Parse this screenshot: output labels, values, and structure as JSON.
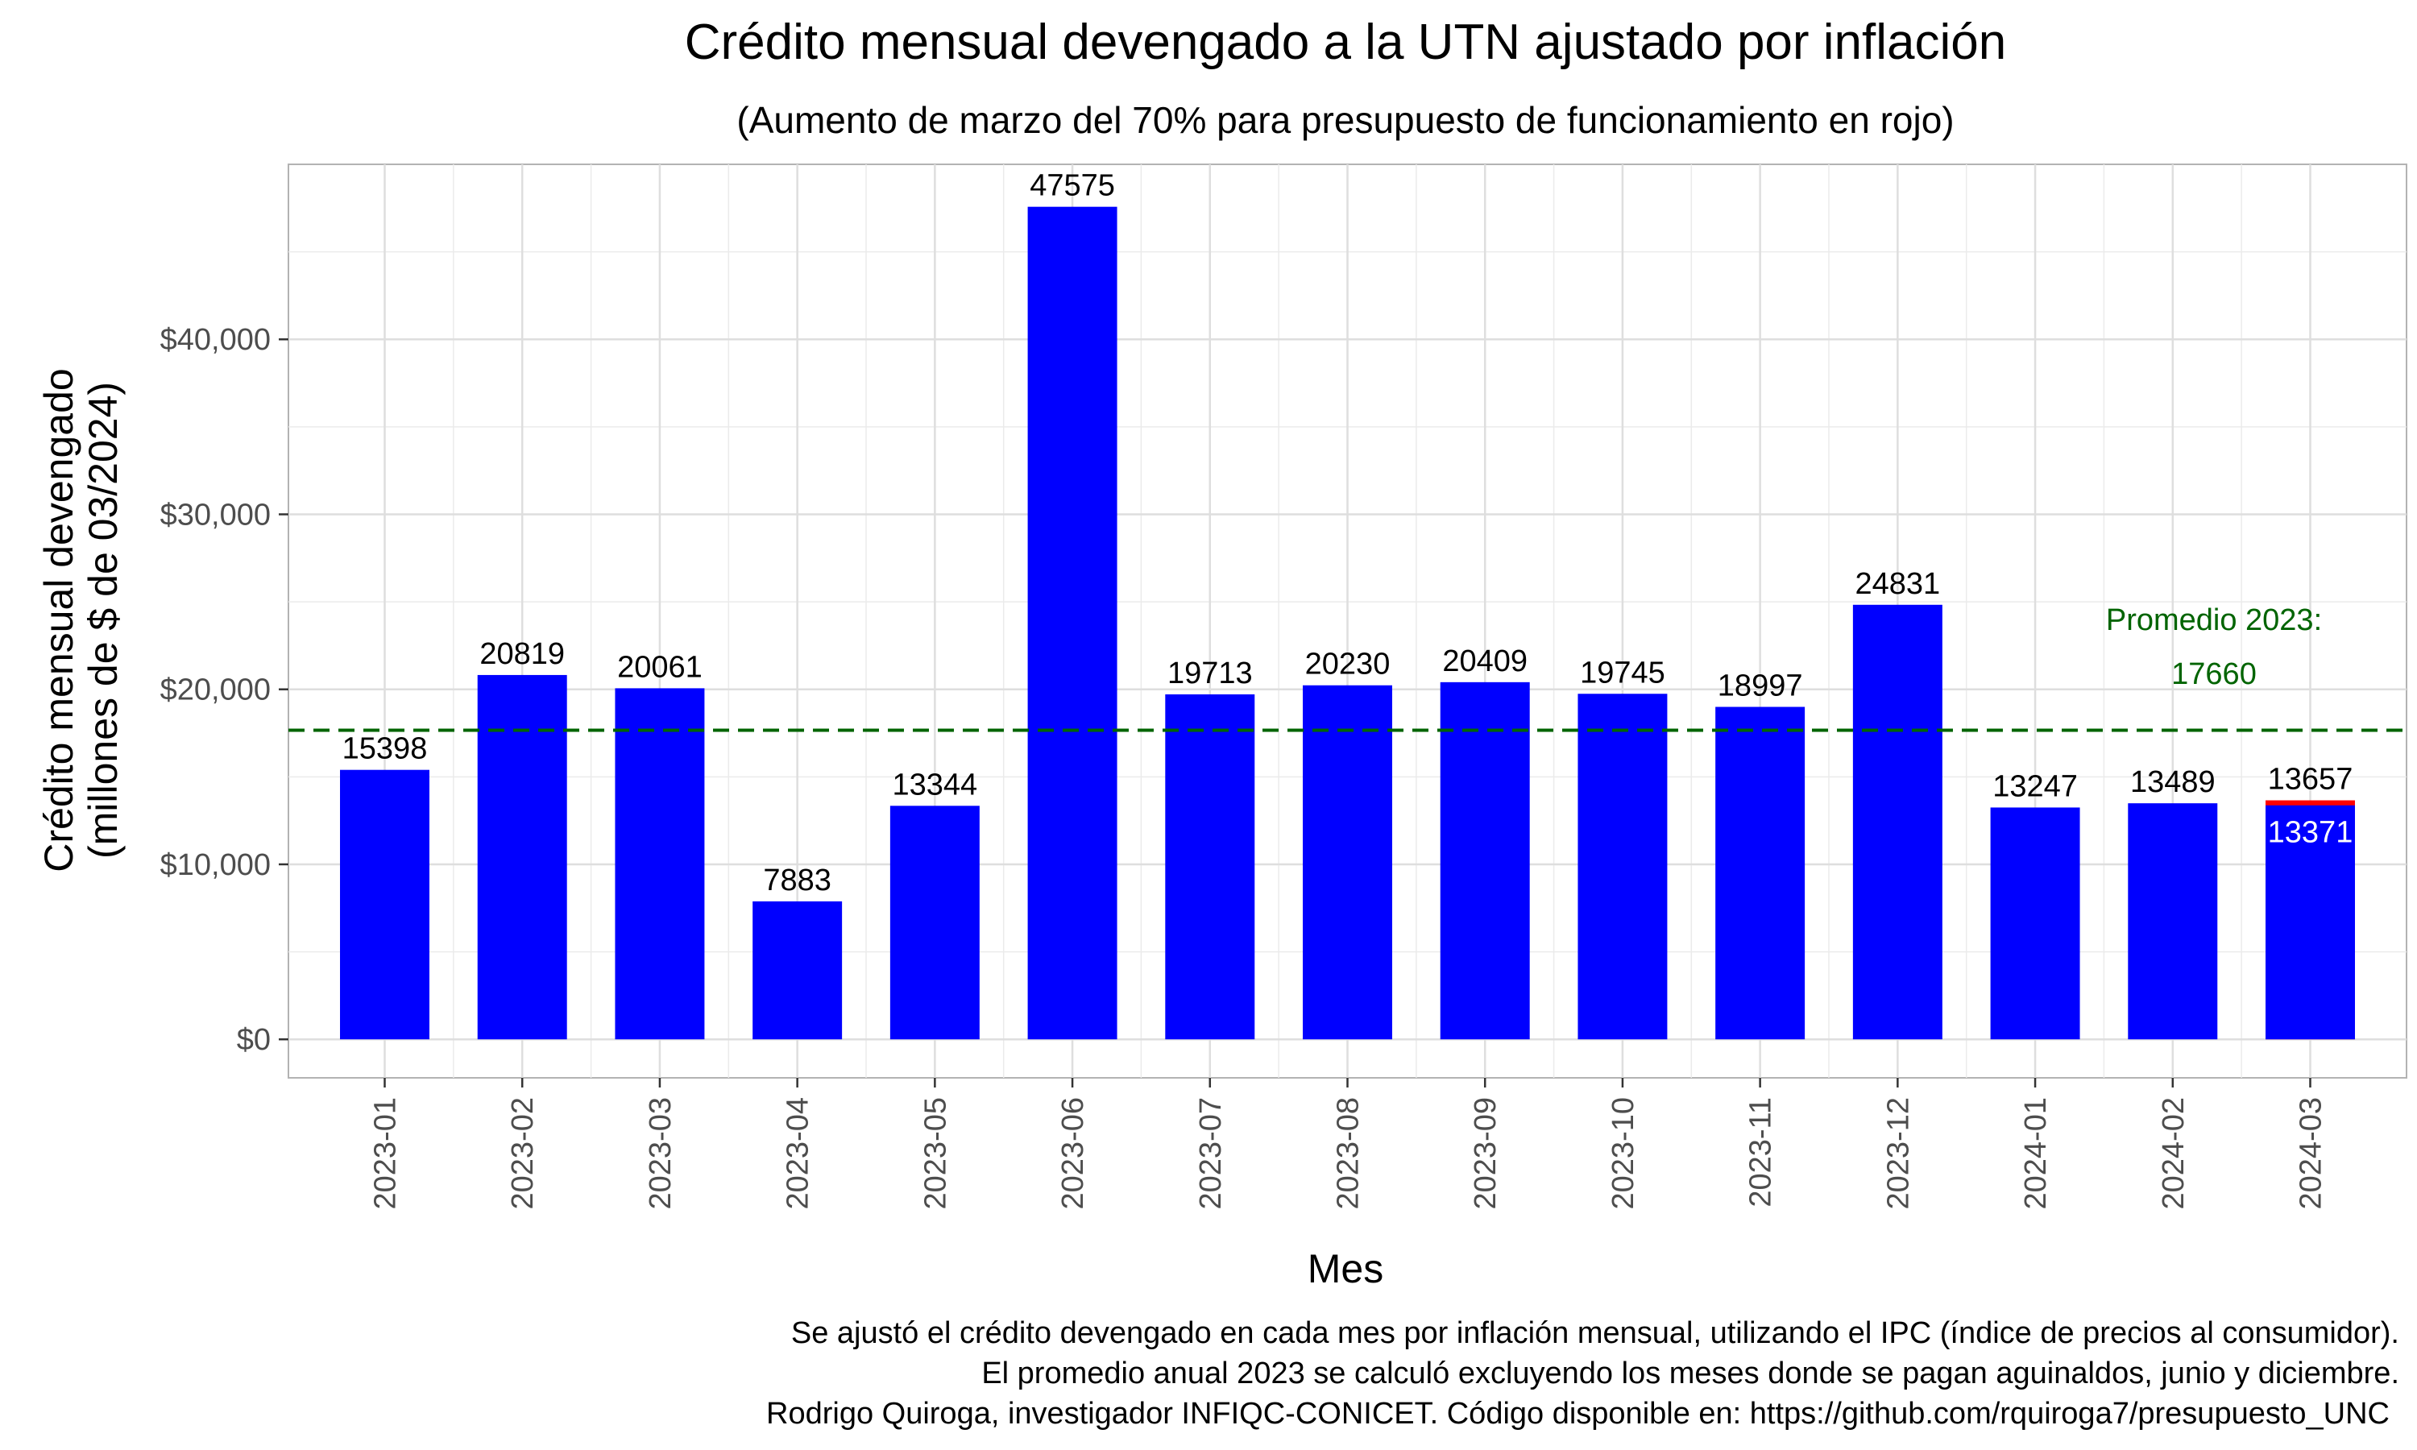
{
  "chart_data": {
    "type": "bar",
    "title": "Crédito mensual devengado a la UTN ajustado por inflación",
    "subtitle": "(Aumento de marzo del 70% para presupuesto de funcionamiento en rojo)",
    "xlabel": "Mes",
    "ylabel_line1": "Crédito mensual devengado",
    "ylabel_line2": "(millones de $ de 03/2024)",
    "categories": [
      "2023-01",
      "2023-02",
      "2023-03",
      "2023-04",
      "2023-05",
      "2023-06",
      "2023-07",
      "2023-08",
      "2023-09",
      "2023-10",
      "2023-11",
      "2023-12",
      "2024-01",
      "2024-02",
      "2024-03"
    ],
    "values": [
      15398,
      20819,
      20061,
      7883,
      13344,
      47575,
      19713,
      20230,
      20409,
      19745,
      18997,
      24831,
      13247,
      13489,
      13657
    ],
    "value_labels": [
      "15398",
      "20819",
      "20061",
      "7883",
      "13344",
      "47575",
      "19713",
      "20230",
      "20409",
      "19745",
      "18997",
      "24831",
      "13247",
      "13489",
      "13657"
    ],
    "highlight": {
      "category": "2024-03",
      "base_value": 13371,
      "base_label": "13371",
      "increase_color": "#ff0000"
    },
    "ylim": [
      -2200,
      50000
    ],
    "yticks": [
      0,
      10000,
      20000,
      30000,
      40000
    ],
    "ytick_labels": [
      "$0",
      "$10,000",
      "$20,000",
      "$30,000",
      "$40,000"
    ],
    "average": {
      "value": 17660,
      "label_line1": "Promedio 2023:",
      "label_line2": "17660",
      "color": "#006400"
    },
    "bar_color": "#0000ff",
    "grid": true
  },
  "caption": {
    "line1": "Se ajustó el crédito devengado en cada mes por inflación mensual, utilizando el IPC (índice de precios al consumidor).",
    "line2": "El promedio anual 2023 se calculó excluyendo los meses donde se pagan aguinaldos, junio y diciembre.",
    "line3": "Rodrigo Quiroga, investigador INFIQC-CONICET. Código disponible en: https://github.com/rquiroga7/presupuesto_UNC"
  }
}
